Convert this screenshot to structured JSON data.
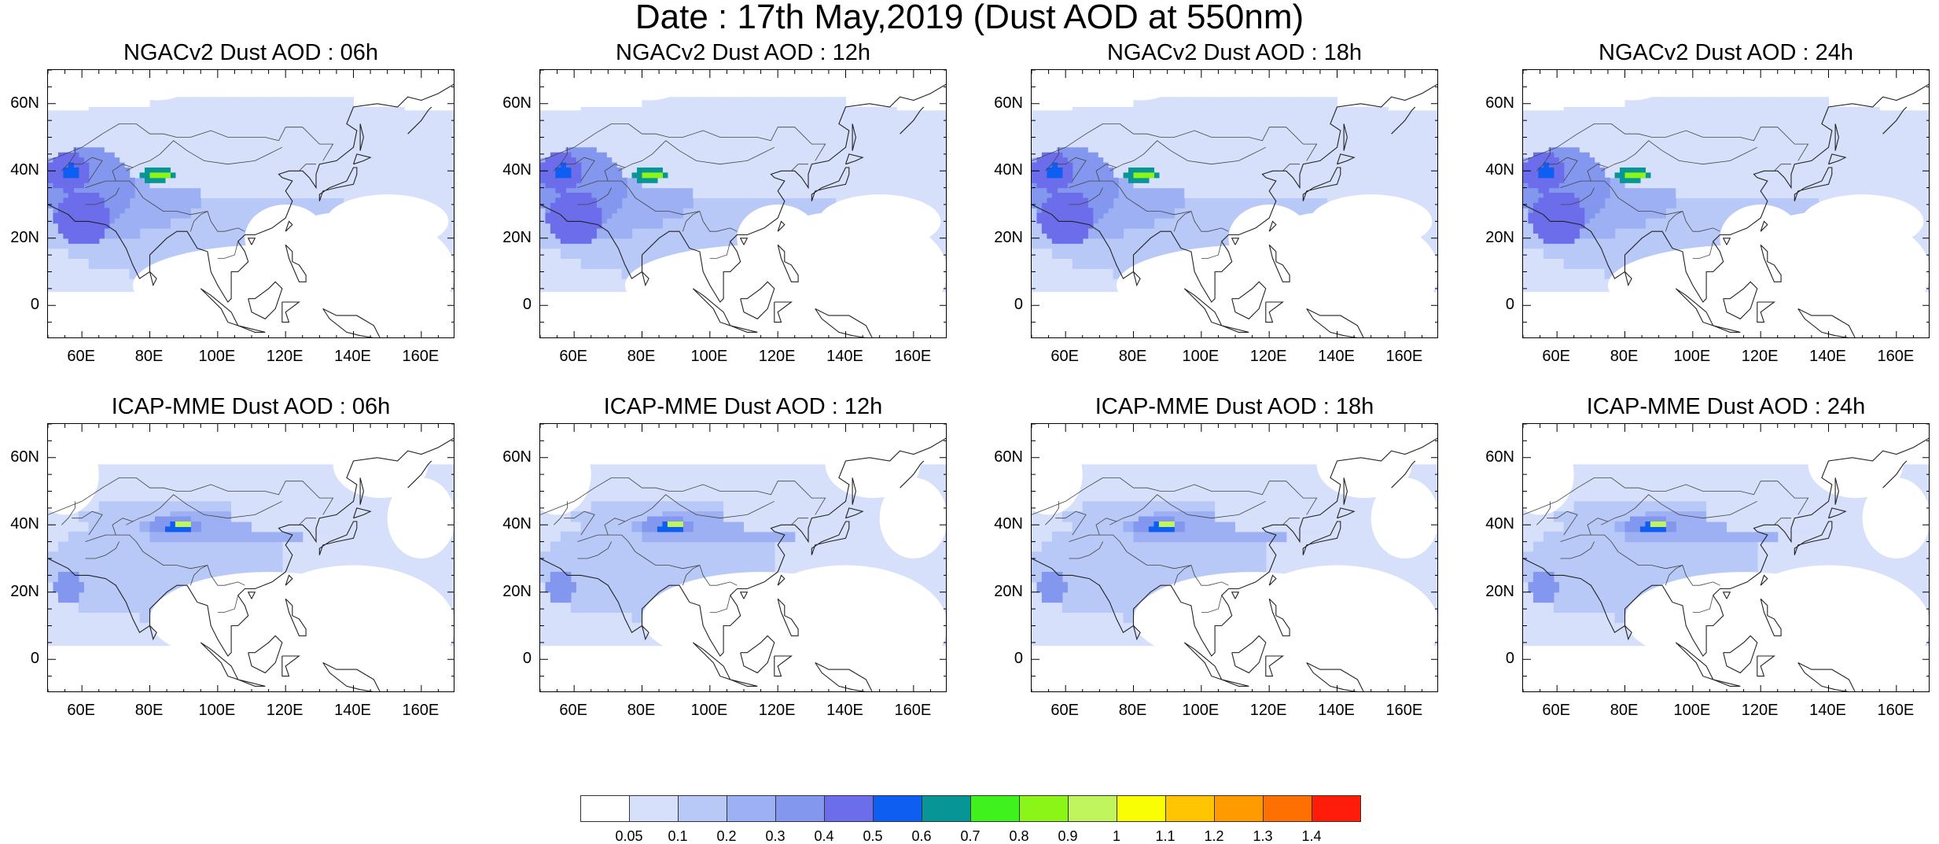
{
  "title": "Date : 17th May,2019 (Dust AOD at 550nm)",
  "panels": [
    {
      "model": "NGACv2",
      "title": "NGACv2 Dust AOD : 06h"
    },
    {
      "model": "NGACv2",
      "title": "NGACv2 Dust AOD : 12h"
    },
    {
      "model": "NGACv2",
      "title": "NGACv2 Dust AOD : 18h"
    },
    {
      "model": "NGACv2",
      "title": "NGACv2 Dust AOD : 24h"
    },
    {
      "model": "ICAP-MME",
      "title": "ICAP-MME Dust AOD : 06h"
    },
    {
      "model": "ICAP-MME",
      "title": "ICAP-MME Dust AOD : 12h"
    },
    {
      "model": "ICAP-MME",
      "title": "ICAP-MME Dust AOD : 18h"
    },
    {
      "model": "ICAP-MME",
      "title": "ICAP-MME Dust AOD : 24h"
    }
  ],
  "map": {
    "lon_range": [
      50,
      170
    ],
    "lat_range": [
      -10,
      70
    ],
    "lon_ticks": [
      {
        "value": 60,
        "label": "60E"
      },
      {
        "value": 80,
        "label": "80E"
      },
      {
        "value": 100,
        "label": "100E"
      },
      {
        "value": 120,
        "label": "120E"
      },
      {
        "value": 140,
        "label": "140E"
      },
      {
        "value": 160,
        "label": "160E"
      }
    ],
    "lat_ticks": [
      {
        "value": 60,
        "label": "60N"
      },
      {
        "value": 40,
        "label": "40N"
      },
      {
        "value": 20,
        "label": "20N"
      },
      {
        "value": 0,
        "label": "0"
      }
    ]
  },
  "colorbar": {
    "labels": [
      "0.05",
      "0.1",
      "0.2",
      "0.3",
      "0.4",
      "0.5",
      "0.6",
      "0.7",
      "0.8",
      "0.9",
      "1",
      "1.1",
      "1.2",
      "1.3",
      "1.4"
    ],
    "colors": [
      "#ffffff",
      "#d6e0fb",
      "#b8c8f7",
      "#9db0f3",
      "#8397ef",
      "#6c6deb",
      "#0f5ef2",
      "#079695",
      "#3ff11d",
      "#8bf518",
      "#c1f55e",
      "#fafe04",
      "#ffc402",
      "#ff9a01",
      "#ff7002",
      "#ff1d0a"
    ]
  }
}
